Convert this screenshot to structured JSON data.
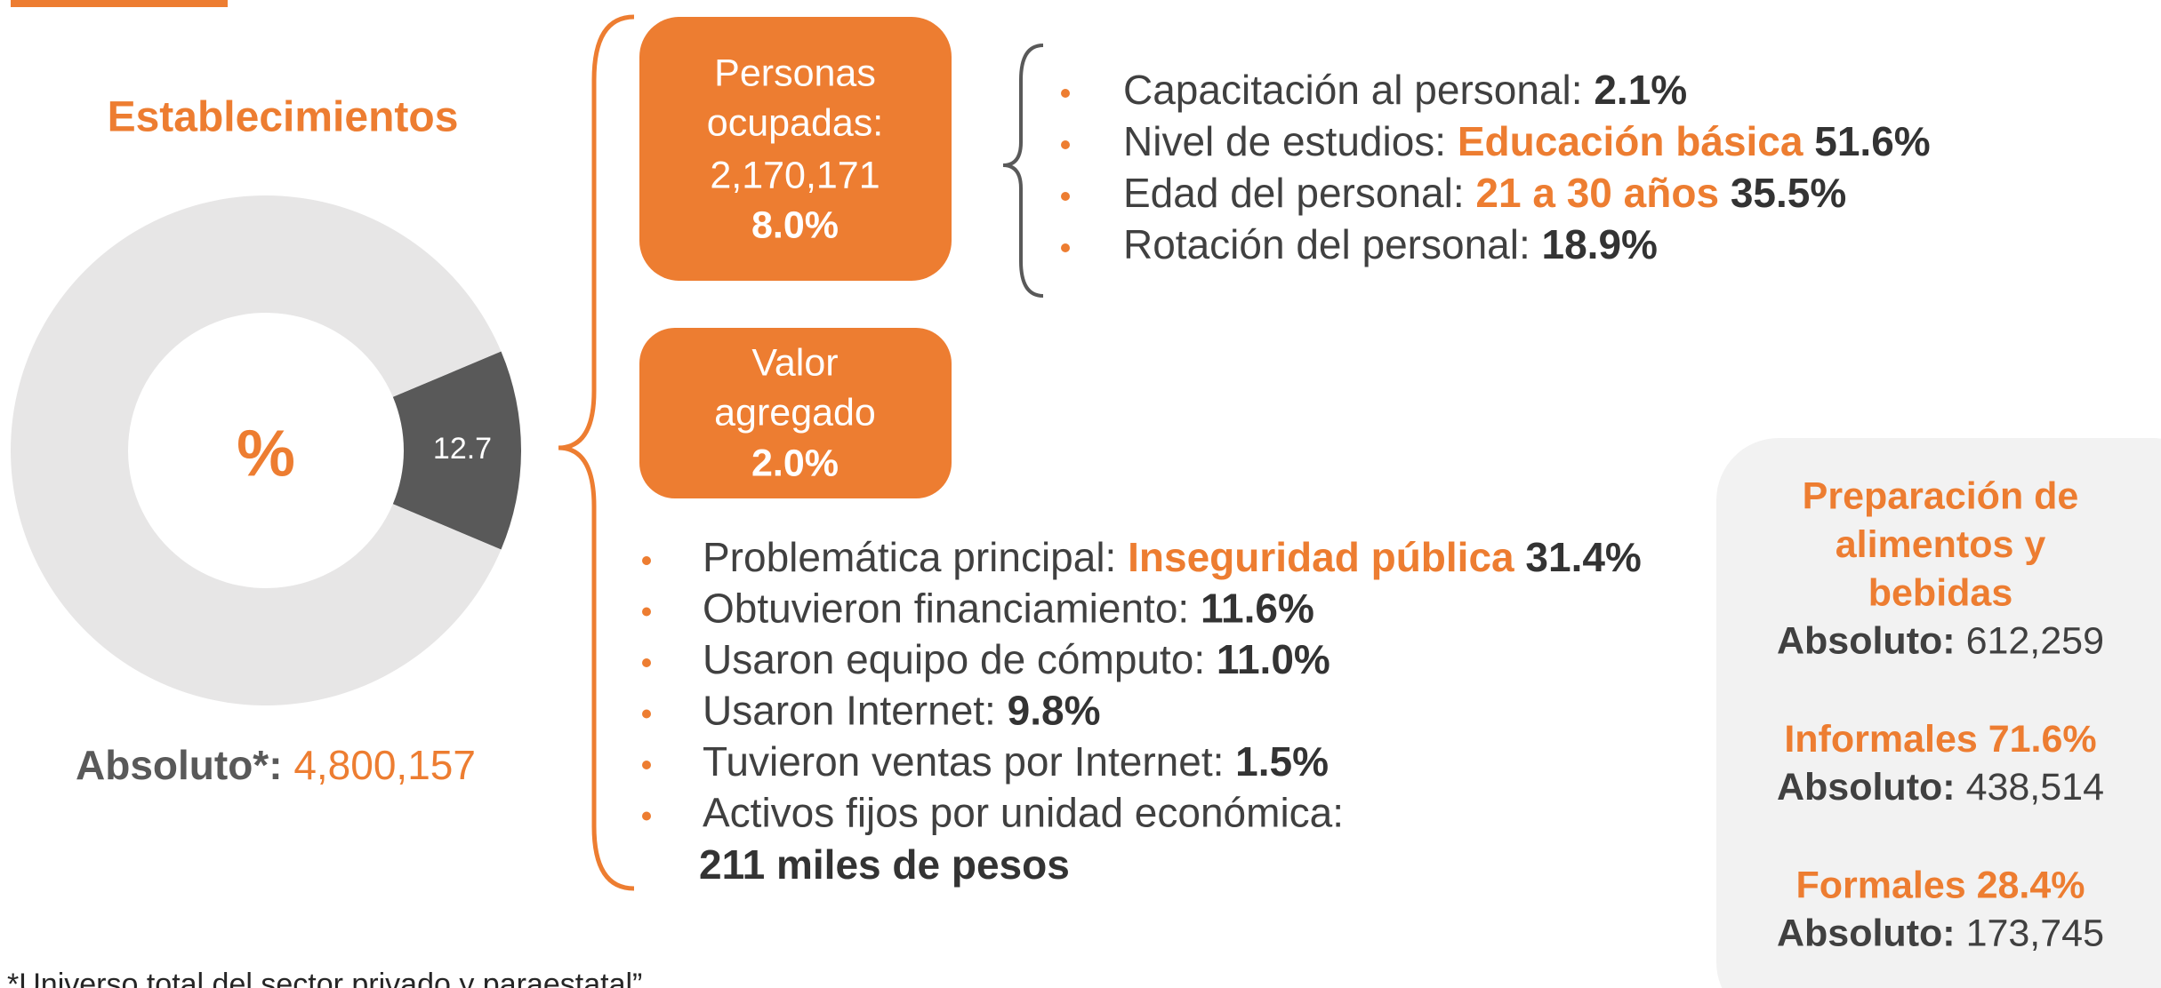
{
  "title": "Establecimientos",
  "chart_data": {
    "type": "donut",
    "center_label": "%",
    "values": [
      12.7,
      87.3
    ],
    "colors": [
      "#595959",
      "#E7E6E6"
    ],
    "label_color": "#ffffff",
    "labeled": [
      true,
      false
    ]
  },
  "absolute": {
    "label": "Absoluto*:",
    "value": "4,800,157"
  },
  "footnote": "*Universo total del sector privado y paraestatal”",
  "boxes": [
    {
      "lines": [
        "Personas",
        "ocupadas:",
        "2,170,171",
        "8.0%"
      ]
    },
    {
      "lines": [
        "Valor",
        "agregado",
        "2.0%"
      ]
    }
  ],
  "staff_items": [
    {
      "label": "Capacitación al personal:",
      "value": "2.1%"
    },
    {
      "label": "Nivel de estudios:",
      "highlight": "Educación básica",
      "value": "51.6%"
    },
    {
      "label": "Edad del personal:",
      "highlight": "21 a 30 años",
      "value": "35.5%"
    },
    {
      "label": "Rotación del personal:",
      "value": "18.9%"
    }
  ],
  "unit_items": [
    {
      "label": "Problemática principal:",
      "highlight": "Inseguridad pública",
      "value": "31.4%"
    },
    {
      "label": "Obtuvieron financiamiento:",
      "value": "11.6%"
    },
    {
      "label": "Usaron equipo de cómputo:",
      "value": "11.0%"
    },
    {
      "label": "Usaron Internet:",
      "value": "9.8%"
    },
    {
      "label": "Tuvieron ventas por Internet:",
      "value": "1.5%"
    },
    {
      "label": "Activos fijos por unidad económica:",
      "value": "211 miles de pesos"
    }
  ],
  "panel": {
    "groups": [
      {
        "title": [
          "Preparación de",
          "alimentos y",
          "bebidas"
        ],
        "absolute_label": "Absoluto:",
        "absolute_value": "612,259"
      },
      {
        "title": [
          "Informales 71.6%"
        ],
        "absolute_label": "Absoluto:",
        "absolute_value": "438,514"
      },
      {
        "title": [
          "Formales 28.4%"
        ],
        "absolute_label": "Absoluto:",
        "absolute_value": "173,745"
      }
    ]
  }
}
